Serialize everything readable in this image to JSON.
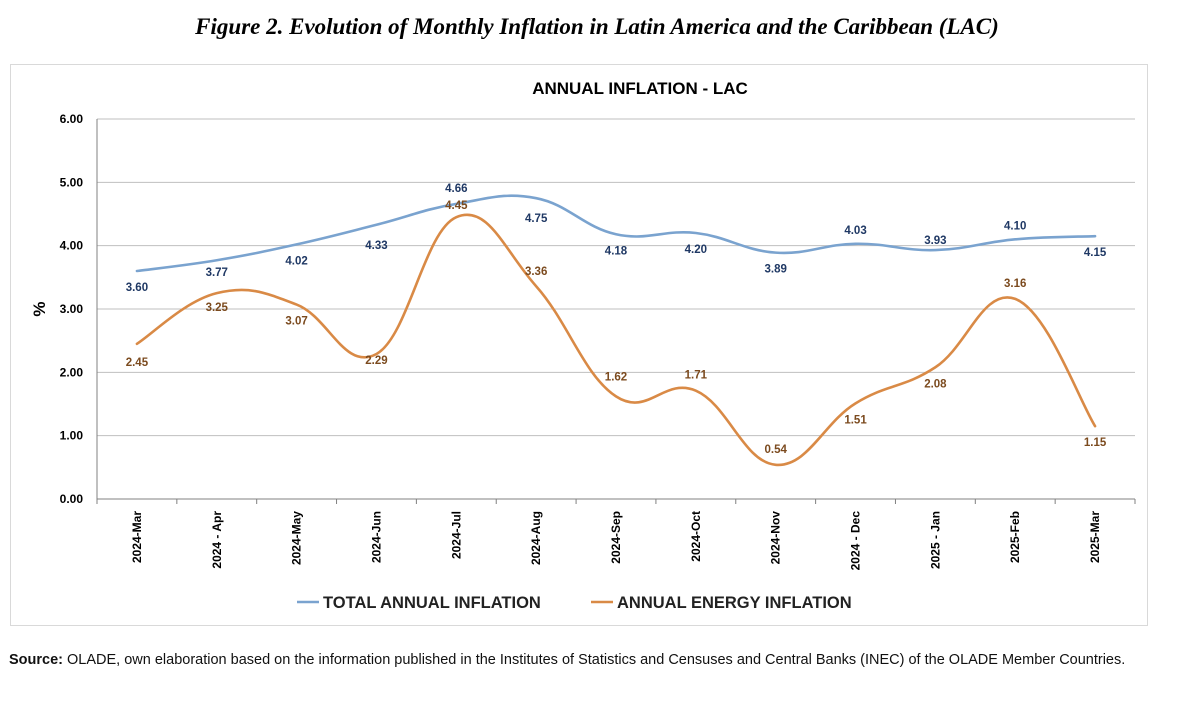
{
  "figure_title": "Figure 2. Evolution of Monthly Inflation in Latin America and the Caribbean (LAC)",
  "source": {
    "label": "Source:",
    "text": " OLADE, own elaboration based on the information published in the Institutes of Statistics and Censuses and Central Banks (INEC) of the OLADE Member Countries."
  },
  "colors": {
    "total": "#7aa3cf",
    "energy": "#d98a46",
    "total_label": "#1f3864",
    "energy_label": "#7b4a1e",
    "grid": "#bfbfbf"
  },
  "chart_data": {
    "type": "line",
    "title": "ANNUAL INFLATION - LAC",
    "ylabel": "%",
    "xlabel": "",
    "ylim": [
      0,
      6
    ],
    "yticks": [
      "0.00",
      "1.00",
      "2.00",
      "3.00",
      "4.00",
      "5.00",
      "6.00"
    ],
    "grid": true,
    "legend_position": "bottom",
    "categories": [
      "2024-Mar",
      "2024 - Apr",
      "2024-May",
      "2024-Jun",
      "2024-Jul",
      "2024-Aug",
      "2024-Sep",
      "2024-Oct",
      "2024-Nov",
      "2024 - Dec",
      "2025 - Jan",
      "2025-Feb",
      "2025-Mar"
    ],
    "series": [
      {
        "name": "TOTAL ANNUAL INFLATION",
        "values": [
          3.6,
          3.77,
          4.02,
          4.33,
          4.66,
          4.75,
          4.18,
          4.2,
          3.89,
          4.03,
          3.93,
          4.1,
          4.15
        ],
        "labels": [
          "3.60",
          "3.77",
          "4.02",
          "4.33",
          "4.66",
          "4.75",
          "4.18",
          "4.20",
          "3.89",
          "4.03",
          "3.93",
          "4.10",
          "4.15"
        ]
      },
      {
        "name": "ANNUAL ENERGY INFLATION",
        "values": [
          2.45,
          3.25,
          3.07,
          2.29,
          4.45,
          3.36,
          1.62,
          1.71,
          0.54,
          1.51,
          2.08,
          3.16,
          1.15
        ],
        "labels": [
          "2.45",
          "3.25",
          "3.07",
          "2.29",
          "4.45",
          "3.36",
          "1.62",
          "1.71",
          "0.54",
          "1.51",
          "2.08",
          "3.16",
          "1.15"
        ]
      }
    ]
  }
}
